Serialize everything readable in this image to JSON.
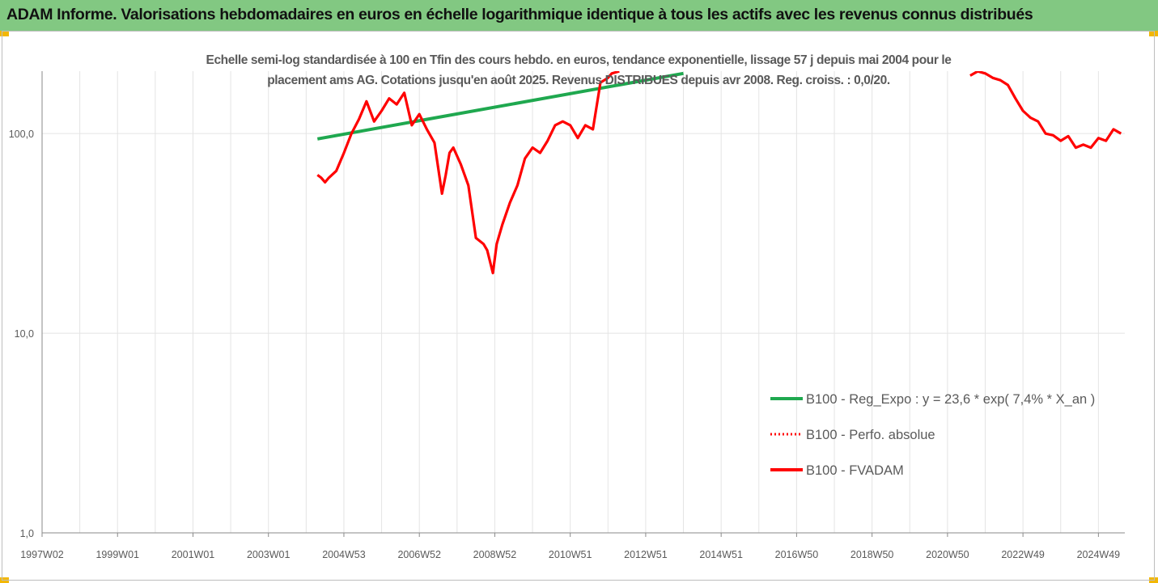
{
  "header": {
    "title": "ADAM Informe. Valorisations hebdomadaires en euros en échelle logarithmique identique à tous les actifs avec les revenus connus distribués"
  },
  "chart_data": {
    "type": "line",
    "title_line1": "Echelle semi-log standardisée à 100 en Tfin des cours hebdo. en euros, tendance exponentielle, lissage 57 j depuis mai 2004 pour le",
    "title_line2": "placement ams AG. Cotations jusqu'en août 2025. Revenus DISTRIBUES depuis avr 2008. Reg. croiss. : 0,0/20.",
    "y_scale": "log",
    "ylim": [
      1,
      200
    ],
    "y_ticks": [
      {
        "value": 100,
        "label": "100,0"
      },
      {
        "value": 10,
        "label": "10,0"
      },
      {
        "value": 1,
        "label": "1,0"
      }
    ],
    "xlim": [
      1997.0,
      2025.7
    ],
    "x_ticks": [
      {
        "value": 1997.0,
        "label": "1997W02"
      },
      {
        "value": 1999.0,
        "label": "1999W01"
      },
      {
        "value": 2001.0,
        "label": "2001W01"
      },
      {
        "value": 2003.0,
        "label": "2003W01"
      },
      {
        "value": 2005.0,
        "label": "2004W53"
      },
      {
        "value": 2007.0,
        "label": "2006W52"
      },
      {
        "value": 2009.0,
        "label": "2008W52"
      },
      {
        "value": 2011.0,
        "label": "2010W51"
      },
      {
        "value": 2013.0,
        "label": "2012W51"
      },
      {
        "value": 2015.0,
        "label": "2014W51"
      },
      {
        "value": 2017.0,
        "label": "2016W50"
      },
      {
        "value": 2019.0,
        "label": "2018W50"
      },
      {
        "value": 2021.0,
        "label": "2020W50"
      },
      {
        "value": 2023.0,
        "label": "2022W49"
      },
      {
        "value": 2025.0,
        "label": "2024W49"
      }
    ],
    "grid": "vertical",
    "legend_position": "right",
    "series": [
      {
        "name": "B100 - Reg_Expo : y = 23,6 * exp( 7,4% *  X_an )",
        "color": "#1fa84f",
        "style": "solid",
        "x": [
          2004.3,
          2014.0
        ],
        "y": [
          94,
          200
        ]
      },
      {
        "name": "B100 - Perfo. absolue",
        "color": "#ff0000",
        "style": "dotted",
        "x": [],
        "y": []
      },
      {
        "name": "B100 - FVADAM",
        "color": "#ff0000",
        "style": "solid",
        "segments": [
          {
            "x": [
              2004.3,
              2004.4,
              2004.5,
              2004.6,
              2004.8,
              2005.0,
              2005.2,
              2005.4,
              2005.6,
              2005.8,
              2006.0,
              2006.2,
              2006.4,
              2006.6,
              2006.8,
              2007.0,
              2007.2,
              2007.4,
              2007.6,
              2007.7,
              2007.8,
              2007.9,
              2008.1,
              2008.3,
              2008.5,
              2008.7,
              2008.8,
              2008.95,
              2009.05,
              2009.2,
              2009.4,
              2009.6,
              2009.8,
              2010.0,
              2010.2,
              2010.4,
              2010.6,
              2010.8,
              2011.0,
              2011.2,
              2011.4,
              2011.6,
              2011.8,
              2012.0,
              2012.1,
              2012.3
            ],
            "y": [
              62,
              60,
              57,
              60,
              65,
              80,
              100,
              118,
              145,
              115,
              130,
              150,
              140,
              160,
              110,
              125,
              105,
              90,
              50,
              62,
              80,
              85,
              70,
              55,
              30,
              28,
              26,
              20,
              28,
              35,
              45,
              55,
              75,
              85,
              80,
              92,
              110,
              115,
              110,
              95,
              110,
              105,
              180,
              190,
              200,
              205
            ]
          },
          {
            "x": [
              2021.6,
              2021.8,
              2022.0,
              2022.2,
              2022.4,
              2022.6,
              2022.8,
              2023.0,
              2023.2,
              2023.4,
              2023.6,
              2023.8,
              2024.0,
              2024.2,
              2024.4,
              2024.6,
              2024.8,
              2025.0,
              2025.2,
              2025.4,
              2025.6
            ],
            "y": [
              195,
              205,
              200,
              190,
              185,
              175,
              150,
              130,
              120,
              115,
              100,
              98,
              92,
              97,
              85,
              88,
              85,
              95,
              92,
              105,
              100
            ]
          }
        ]
      }
    ]
  }
}
